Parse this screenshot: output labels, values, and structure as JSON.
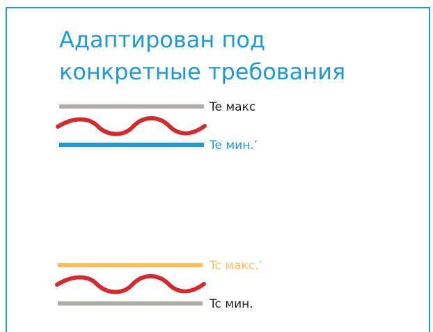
{
  "title": {
    "line1": "Адаптирован под",
    "line2": "конкретные требования"
  },
  "top_group": {
    "max_label": "Te макс",
    "min_label": "Te мин.’"
  },
  "bottom_group": {
    "max_label": "Tc макс.’",
    "min_label": "Tc мин."
  },
  "colors": {
    "frame": "#1b9ad6",
    "gray_line": "#b0aca3",
    "blue_line": "#1b9ad6",
    "yellow_line": "#fcbf55",
    "red_wave": "#d42a2e",
    "text_dark": "#231f20",
    "text_blue": "#1b9ad6",
    "text_yellow": "#fcbf55"
  }
}
